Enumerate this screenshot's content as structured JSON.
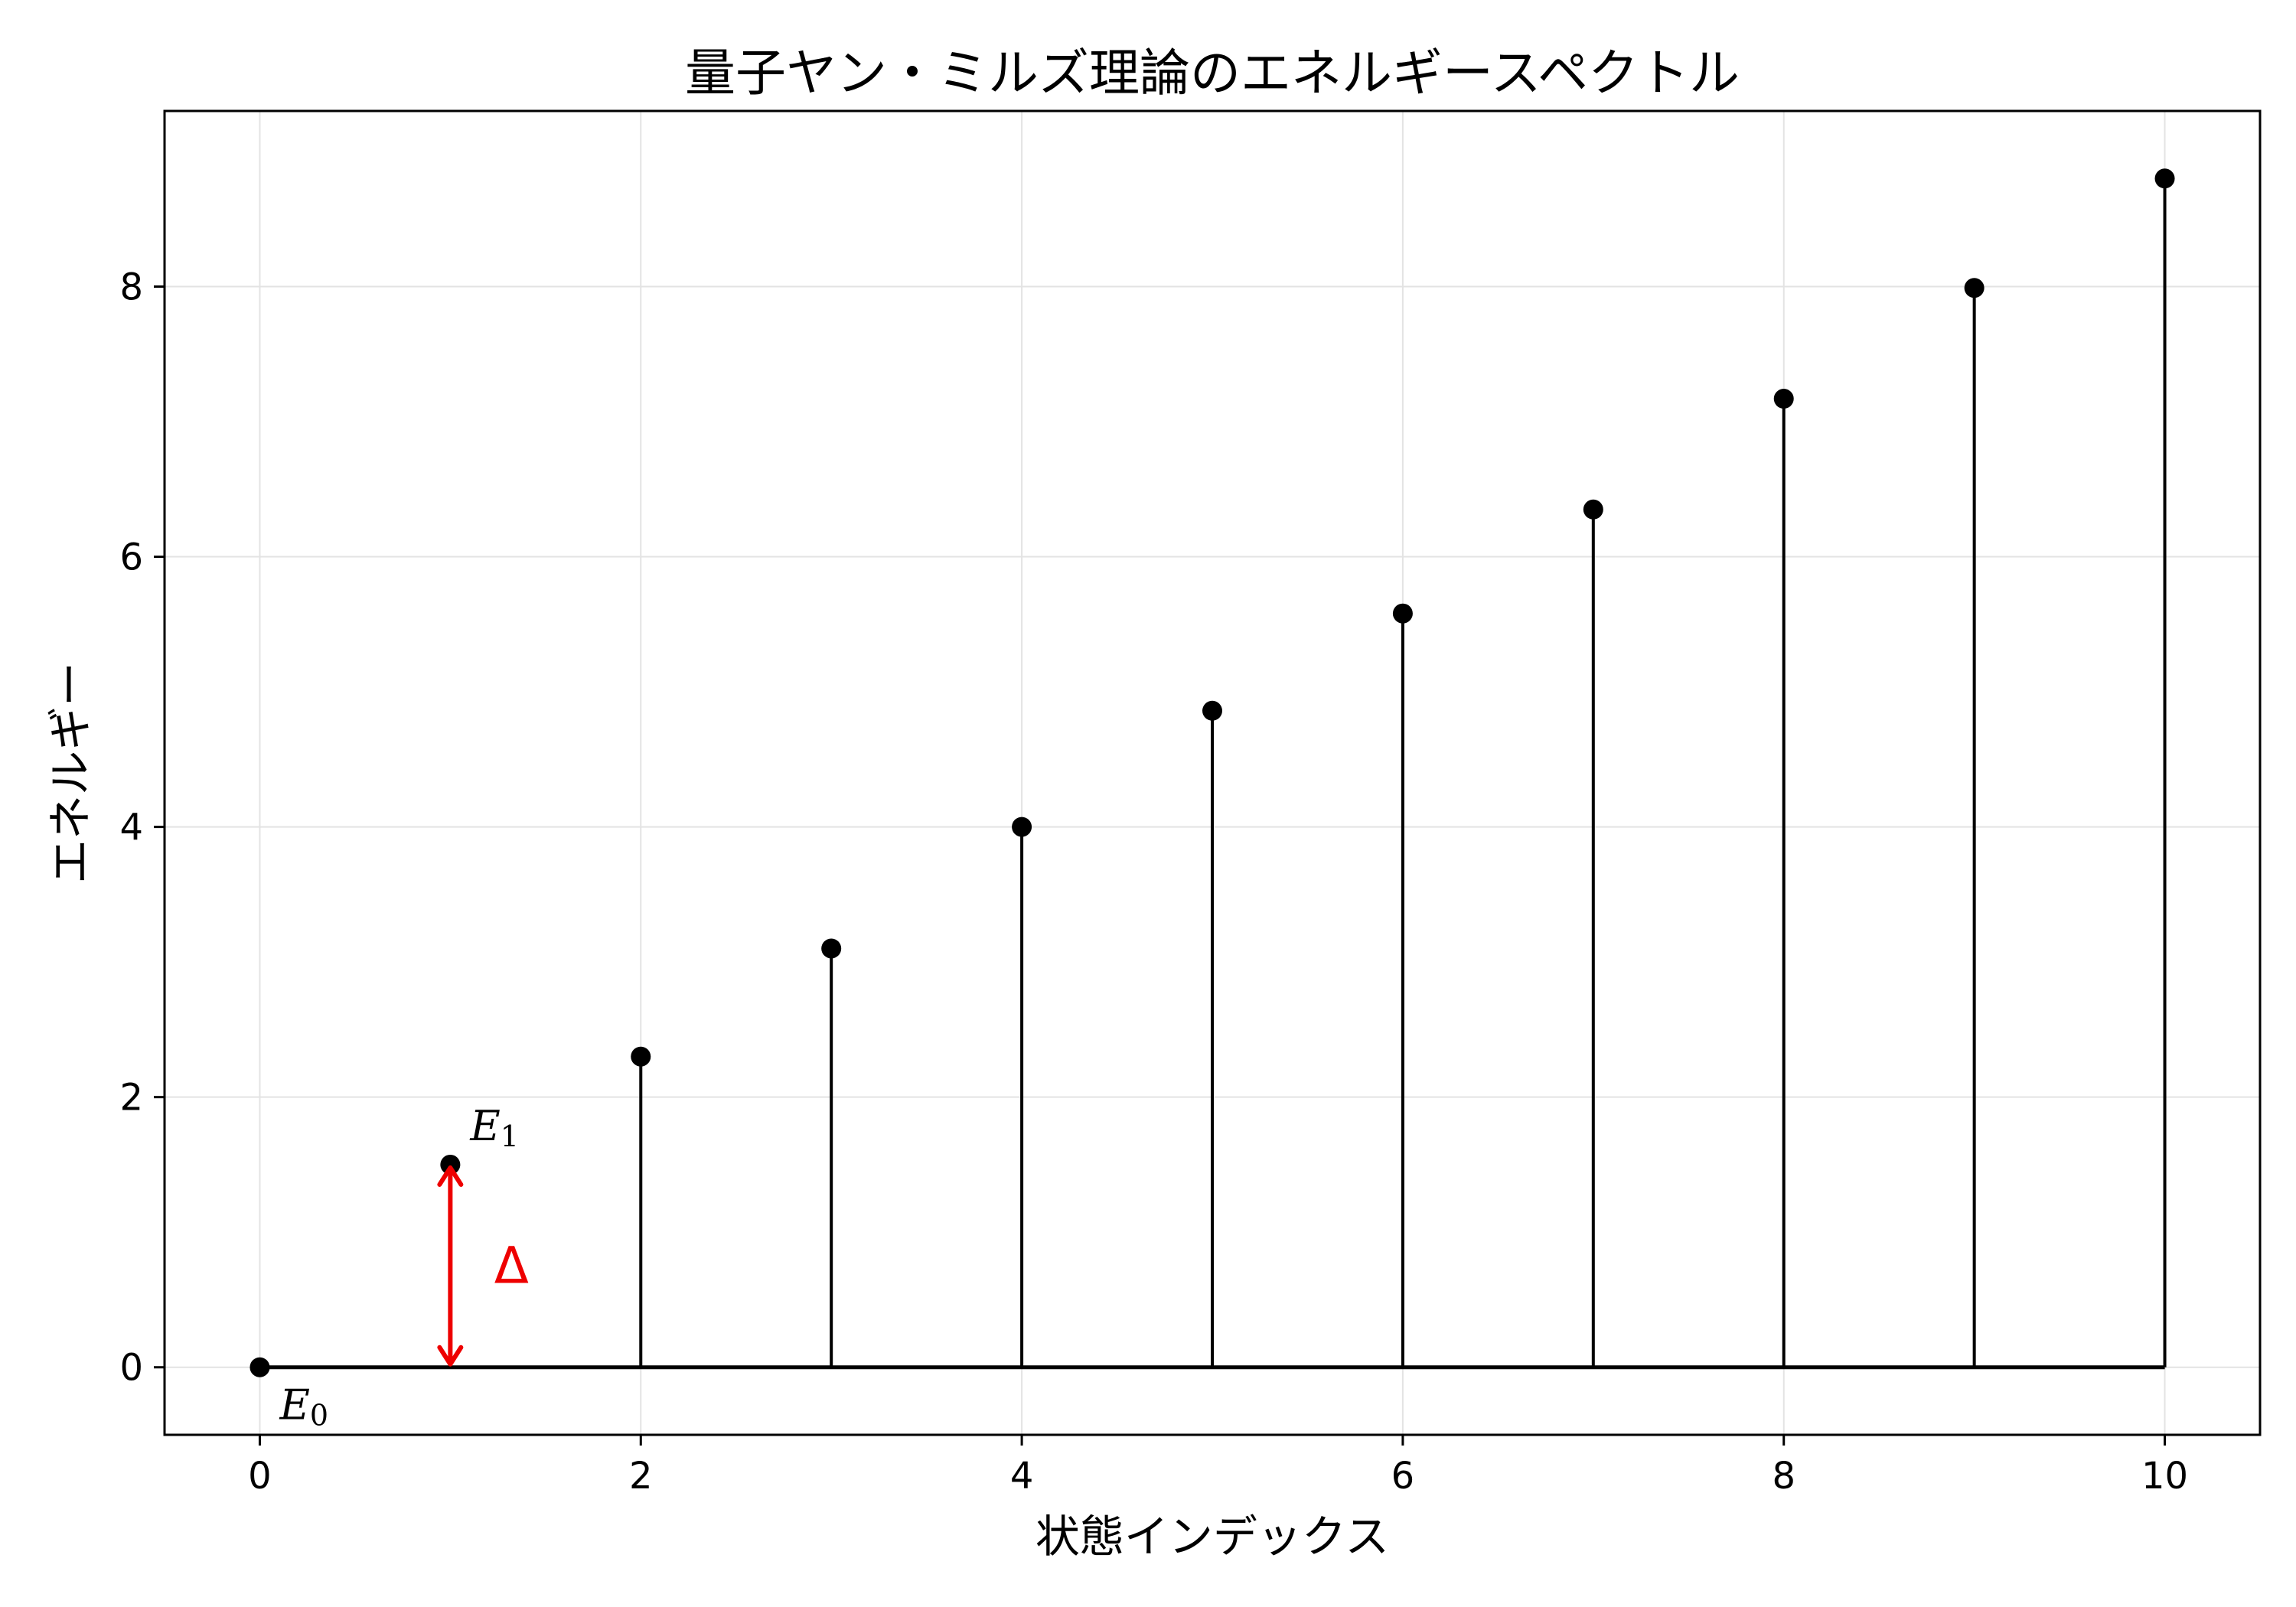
{
  "chart_data": {
    "type": "stem",
    "title": "量子ヤン・ミルズ理論のエネルギースペクトル",
    "xlabel": "状態インデックス",
    "ylabel": "エネルギー",
    "xlim": [
      -0.5,
      10.5
    ],
    "ylim": [
      -0.5,
      9.3
    ],
    "xticks": [
      0,
      2,
      4,
      6,
      8,
      10
    ],
    "yticks": [
      0,
      2,
      4,
      6,
      8
    ],
    "grid": true,
    "x": [
      0,
      1,
      2,
      3,
      4,
      5,
      6,
      7,
      8,
      9,
      10
    ],
    "values": [
      0,
      1.5,
      2.3,
      3.1,
      4.0,
      4.86,
      5.58,
      6.35,
      7.17,
      7.99,
      8.8
    ],
    "baseline": 0,
    "annotations": [
      {
        "main": "E",
        "sub": "0",
        "x": 0,
        "y": 0
      },
      {
        "main": "E",
        "sub": "1",
        "x": 1,
        "y": 1.5
      }
    ],
    "gap": {
      "label": "Δ",
      "x": 1,
      "from": 0,
      "to": 1.5,
      "color": "#ee0000"
    }
  }
}
